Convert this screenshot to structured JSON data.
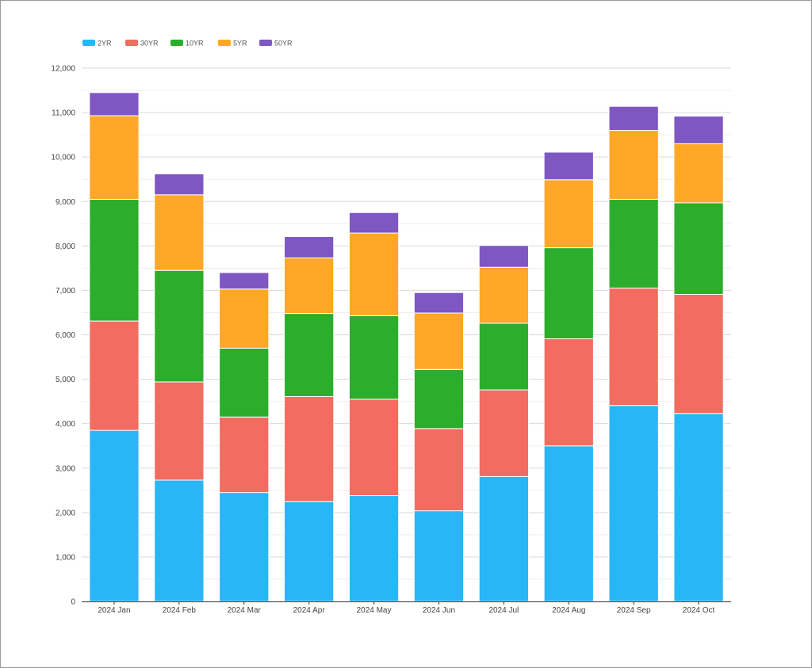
{
  "chart_data": {
    "type": "bar",
    "stacked": true,
    "categories": [
      "2024 Jan",
      "2024 Feb",
      "2024 Mar",
      "2024 Apr",
      "2024 May",
      "2024 Jun",
      "2024 Jul",
      "2024 Aug",
      "2024 Sep",
      "2024 Oct"
    ],
    "series": [
      {
        "name": "2YR",
        "color": "#29b6f6",
        "values": [
          3850,
          2730,
          2450,
          2250,
          2380,
          2040,
          2810,
          3500,
          4410,
          4230
        ]
      },
      {
        "name": "30YR",
        "color": "#f26c60",
        "values": [
          2460,
          2210,
          1700,
          2360,
          2170,
          1850,
          1950,
          2410,
          2640,
          2680
        ]
      },
      {
        "name": "10YR",
        "color": "#2cad2c",
        "values": [
          2740,
          2510,
          1550,
          1870,
          1880,
          1330,
          1500,
          2050,
          2000,
          2060
        ]
      },
      {
        "name": "5YR",
        "color": "#ffa726",
        "values": [
          1880,
          1700,
          1330,
          1250,
          1860,
          1270,
          1260,
          1530,
          1550,
          1330
        ]
      },
      {
        "name": "50YR",
        "color": "#7e57c2",
        "values": [
          520,
          470,
          370,
          480,
          460,
          460,
          490,
          620,
          540,
          620
        ]
      }
    ],
    "ylim": [
      0,
      12000
    ],
    "yticks": [
      0,
      1000,
      2000,
      3000,
      4000,
      5000,
      6000,
      7000,
      8000,
      9000,
      10000,
      11000,
      12000
    ],
    "ytick_labels": [
      "0",
      "1,000",
      "2,000",
      "3,000",
      "4,000",
      "5,000",
      "6,000",
      "7,000",
      "8,000",
      "9,000",
      "10,000",
      "11,000",
      "12,000"
    ],
    "title": "",
    "xlabel": "",
    "ylabel": "",
    "grid": true,
    "legend_position": "top-left"
  }
}
